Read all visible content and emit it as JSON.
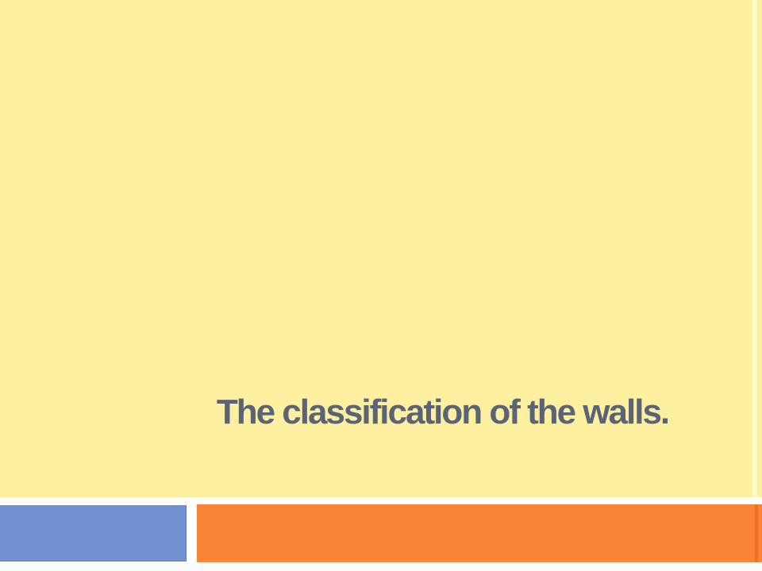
{
  "slide": {
    "title": "The classification of the walls."
  },
  "colors": {
    "background": "#fdf1a1",
    "background_edge": "#fdf8cb",
    "title_text": "#5b6376",
    "accent_blue": "#7391d2",
    "accent_blue_edge": "#5f7db8",
    "accent_orange": "#fb8335",
    "accent_orange_edge": "#ef7022",
    "canvas": "#ffffff",
    "footer_strip": "#f8fcfd"
  }
}
